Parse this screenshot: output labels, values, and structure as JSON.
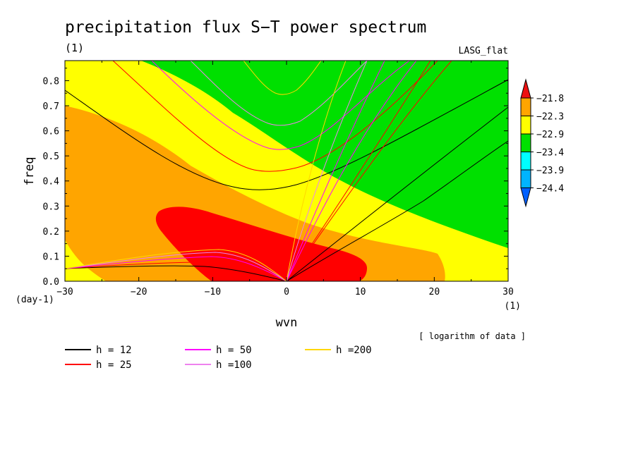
{
  "chart_data": {
    "type": "heatmap",
    "title": "precipitation flux S−T power spectrum",
    "subtitle_left": "(1)",
    "subtitle_right": "LASG_flat",
    "xlabel": "wvn",
    "ylabel": "freq",
    "x_unit": "(1)",
    "y_unit": "(day-1)",
    "xlim": [
      -30,
      30
    ],
    "ylim": [
      0,
      0.88
    ],
    "x_ticks": [
      "−30",
      "−20",
      "−10",
      "0",
      "10",
      "20",
      "30"
    ],
    "x_tick_values": [
      -30,
      -20,
      -10,
      0,
      10,
      20,
      30
    ],
    "y_ticks": [
      "0.0",
      "0.1",
      "0.2",
      "0.3",
      "0.4",
      "0.5",
      "0.6",
      "0.7",
      "0.8"
    ],
    "y_tick_values": [
      0,
      0.1,
      0.2,
      0.3,
      0.4,
      0.5,
      0.6,
      0.7,
      0.8
    ],
    "colorbar": {
      "labels": [
        "−21.8",
        "−22.3",
        "−22.9",
        "−23.4",
        "−23.9",
        "−24.4"
      ],
      "colors_top_to_bottom": [
        "#ee1010",
        "#ffa500",
        "#ffff00",
        "#00e000",
        "#00ffff",
        "#00b4ff",
        "#0060ff"
      ]
    },
    "note": "[ logarithm of data ]",
    "fill_colors": {
      "red": "#ff0000",
      "orange": "#ffa500",
      "yellow": "#ffff00",
      "green": "#00e000",
      "cyan": "#00ffff",
      "sky": "#00aaff",
      "blue": "#0060ff"
    },
    "dispersion_curves": [
      {
        "name": "h = 12",
        "h": 12,
        "color": "#000000"
      },
      {
        "name": "h = 25",
        "h": 25,
        "color": "#ff0000"
      },
      {
        "name": "h = 50",
        "h": 50,
        "color": "#ff00ff"
      },
      {
        "name": "h =100",
        "h": 100,
        "color": "#ee82ee"
      },
      {
        "name": "h =200",
        "h": 200,
        "color": "#ffd700"
      }
    ]
  }
}
